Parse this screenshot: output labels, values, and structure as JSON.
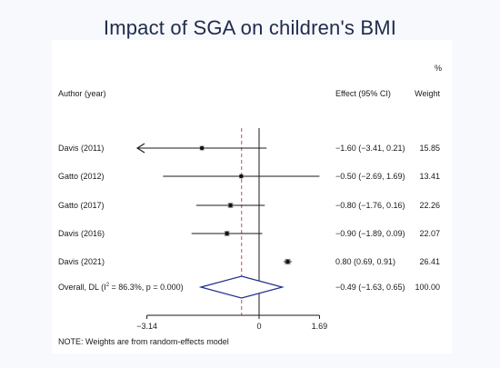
{
  "slide": {
    "title": "Impact of SGA on children's BMI"
  },
  "chart_data": {
    "type": "forest",
    "header": {
      "pct": "%",
      "col_study": "Author (year)",
      "col_effect": "Effect (95% CI)",
      "col_weight": "Weight"
    },
    "studies": [
      {
        "label": "Davis (2011)",
        "est": -1.6,
        "lo": -3.41,
        "hi": 0.21,
        "weight": 15.85,
        "effect_text": "−1.60 (−3.41, 0.21)",
        "weight_text": "15.85",
        "clipped_left": true
      },
      {
        "label": "Gatto (2012)",
        "est": -0.5,
        "lo": -2.69,
        "hi": 1.69,
        "weight": 13.41,
        "effect_text": "−0.50 (−2.69, 1.69)",
        "weight_text": "13.41"
      },
      {
        "label": "Gatto (2017)",
        "est": -0.8,
        "lo": -1.76,
        "hi": 0.16,
        "weight": 22.26,
        "effect_text": "−0.80 (−1.76, 0.16)",
        "weight_text": "22.26"
      },
      {
        "label": "Davis (2016)",
        "est": -0.9,
        "lo": -1.89,
        "hi": 0.09,
        "weight": 22.07,
        "effect_text": "−0.90 (−1.89, 0.09)",
        "weight_text": "22.07"
      },
      {
        "label": "Davis (2021)",
        "est": 0.8,
        "lo": 0.69,
        "hi": 0.91,
        "weight": 26.41,
        "effect_text": "0.80 (0.69, 0.91)",
        "weight_text": "26.41"
      }
    ],
    "overall": {
      "label_pre": "Overall, DL (I",
      "label_sup": "2",
      "label_post": " = 86.3%, p = 0.000)",
      "est": -0.49,
      "lo": -1.63,
      "hi": 0.65,
      "effect_text": "−0.49 (−1.63, 0.65)",
      "weight_text": "100.00"
    },
    "xaxis": {
      "ticks": [
        -3.14,
        0,
        1.69
      ],
      "tick_labels": [
        "−3.14",
        "0",
        "1.69"
      ]
    },
    "note": "NOTE: Weights are from random-effects model",
    "colors": {
      "ci": "#1a1a1a",
      "diamond": "#1f2f8a",
      "dashed": "#c0504d"
    }
  }
}
